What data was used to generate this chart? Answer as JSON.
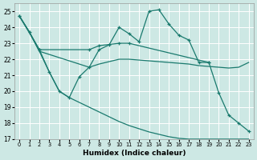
{
  "xlabel": "Humidex (Indice chaleur)",
  "background_color": "#cde8e4",
  "grid_color": "#ffffff",
  "line_color": "#1a7a6e",
  "xlim": [
    -0.5,
    23.5
  ],
  "ylim": [
    17,
    25.5
  ],
  "yticks": [
    17,
    18,
    19,
    20,
    21,
    22,
    23,
    24,
    25
  ],
  "xticks": [
    0,
    1,
    2,
    3,
    4,
    5,
    6,
    7,
    8,
    9,
    10,
    11,
    12,
    13,
    14,
    15,
    16,
    17,
    18,
    19,
    20,
    21,
    22,
    23
  ],
  "line1_x": [
    0,
    1,
    2,
    3,
    4,
    5,
    6,
    7,
    8,
    9,
    10,
    11,
    12,
    13,
    14,
    15,
    16,
    17,
    18,
    19,
    20,
    21,
    22,
    23
  ],
  "line1_y": [
    24.7,
    23.7,
    22.6,
    21.2,
    20.0,
    19.6,
    20.9,
    21.5,
    22.6,
    22.9,
    24.0,
    23.6,
    23.1,
    25.0,
    25.1,
    24.2,
    23.5,
    23.2,
    21.8,
    21.8,
    19.9,
    18.5,
    18.0,
    17.5
  ],
  "line2_x": [
    0,
    2,
    7,
    8,
    10,
    11,
    19
  ],
  "line2_y": [
    24.7,
    22.6,
    22.6,
    22.85,
    23.0,
    23.0,
    21.8
  ],
  "line3_x": [
    0,
    1,
    2,
    3,
    4,
    5,
    6,
    7,
    8,
    9,
    10,
    11,
    12,
    13,
    14,
    15,
    16,
    17,
    18,
    19,
    20,
    21,
    22,
    23
  ],
  "line3_y": [
    24.7,
    23.7,
    22.5,
    22.3,
    22.1,
    21.9,
    21.7,
    21.5,
    21.7,
    21.85,
    22.0,
    22.0,
    21.95,
    21.9,
    21.85,
    21.8,
    21.75,
    21.7,
    21.6,
    21.55,
    21.5,
    21.45,
    21.5,
    21.8
  ],
  "line4_x": [
    0,
    1,
    2,
    3,
    4,
    5,
    6,
    7,
    8,
    9,
    10,
    11,
    12,
    13,
    14,
    15,
    16,
    17,
    18,
    19,
    20,
    21,
    22,
    23
  ],
  "line4_y": [
    24.7,
    23.7,
    22.5,
    21.2,
    20.0,
    19.6,
    19.3,
    19.0,
    18.7,
    18.4,
    18.1,
    17.85,
    17.65,
    17.45,
    17.3,
    17.15,
    17.05,
    17.0,
    17.0,
    17.0,
    17.0,
    17.0,
    17.0,
    17.0
  ]
}
